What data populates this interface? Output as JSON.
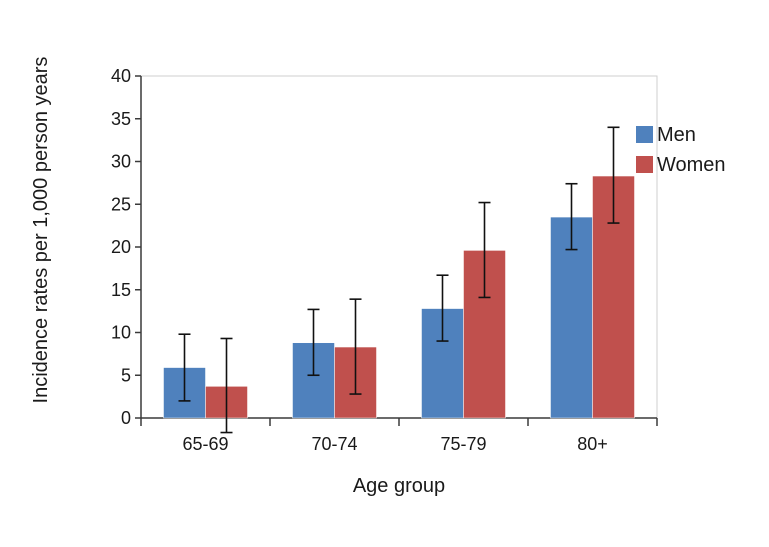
{
  "chart_data": {
    "type": "bar",
    "title": "",
    "xlabel": "Age group",
    "ylabel": "Incidence rates per 1,000 person years",
    "categories": [
      "65-69",
      "70-74",
      "75-79",
      "80+"
    ],
    "ylim": [
      0,
      40
    ],
    "yticks": [
      0,
      5,
      10,
      15,
      20,
      25,
      30,
      35,
      40
    ],
    "legend_position": "right",
    "grid": false,
    "series": [
      {
        "name": "Men",
        "color": "#4f81bd",
        "values": [
          5.9,
          8.8,
          12.8,
          23.5
        ],
        "error_low": [
          2.0,
          5.0,
          9.0,
          19.7
        ],
        "error_high": [
          9.8,
          12.7,
          16.7,
          27.4
        ]
      },
      {
        "name": "Women",
        "color": "#c0504d",
        "values": [
          3.7,
          8.3,
          19.6,
          28.3
        ],
        "error_low": [
          -1.7,
          2.8,
          14.1,
          22.8
        ],
        "error_high": [
          9.3,
          13.9,
          25.2,
          34.0
        ]
      }
    ]
  }
}
